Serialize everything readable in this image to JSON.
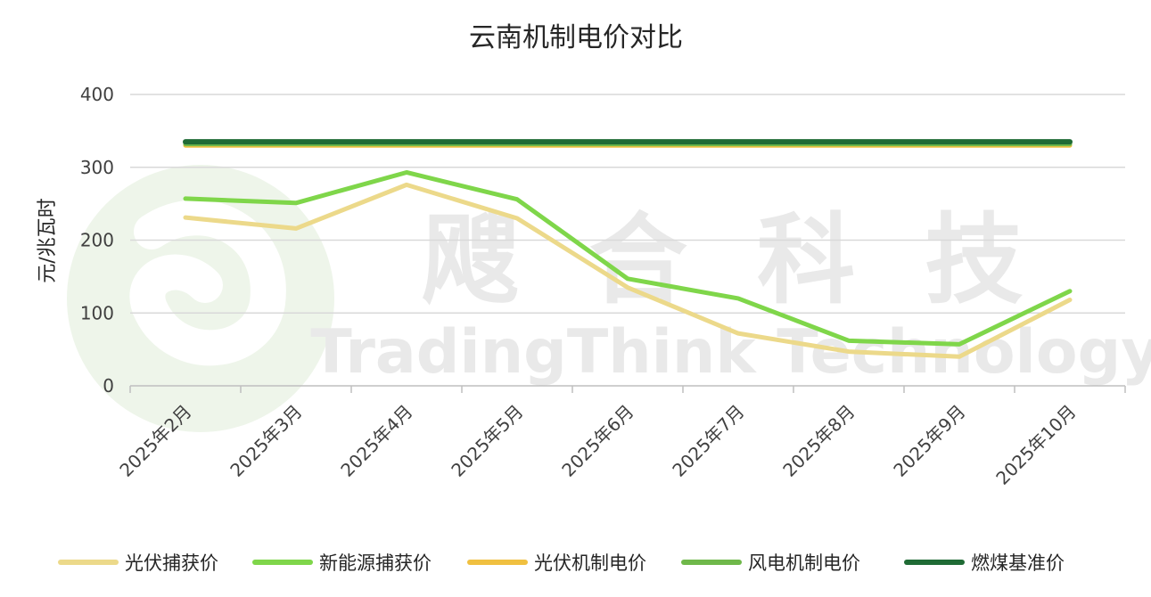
{
  "chart_data": {
    "type": "line",
    "title": "云南机制电价对比",
    "ylabel": "元/兆瓦时",
    "xlabel": "",
    "ylim": [
      0,
      400
    ],
    "yticks": [
      0,
      100,
      200,
      300,
      400
    ],
    "grid": true,
    "legend_position": "bottom",
    "categories": [
      "2025年2月",
      "2025年3月",
      "2025年4月",
      "2025年5月",
      "2025年6月",
      "2025年7月",
      "2025年8月",
      "2025年9月",
      "2025年10月"
    ],
    "series": [
      {
        "name": "光伏捕获价",
        "color": "#ecd98a",
        "values": [
          231,
          216,
          276,
          230,
          135,
          72,
          47,
          40,
          118
        ]
      },
      {
        "name": "新能源捕获价",
        "color": "#7fd64a",
        "values": [
          257,
          251,
          293,
          256,
          147,
          120,
          62,
          57,
          130
        ]
      },
      {
        "name": "光伏机制电价",
        "color": "#f0c040",
        "values": [
          330,
          330,
          330,
          330,
          330,
          330,
          330,
          330,
          330
        ]
      },
      {
        "name": "风电机制电价",
        "color": "#6fb84a",
        "values": [
          332,
          332,
          332,
          332,
          332,
          332,
          332,
          332,
          332
        ]
      },
      {
        "name": "燃煤基准价",
        "color": "#1f6b35",
        "values": [
          335,
          335,
          335,
          335,
          335,
          335,
          335,
          335,
          335
        ]
      }
    ]
  },
  "watermark": {
    "cn": "飕 合 科 技",
    "en": "TradingThink Technology"
  }
}
